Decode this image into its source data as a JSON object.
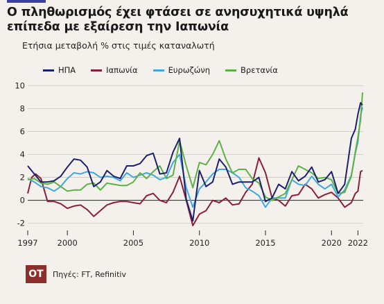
{
  "header": {
    "title": "Ο πληθωρισμός έχει φτάσει σε ανησυχητικά υψηλά επίπεδα με εξαίρεση την Ιαπωνία",
    "subtitle": "Ετήσια μεταβολή % στις τιμές καταναλωτή"
  },
  "footer": {
    "logo": "ΟΤ",
    "source": "Πηγές: FT, Refinitiv"
  },
  "chart_data": {
    "type": "line",
    "title": "Ο πληθωρισμός έχει φτάσει σε ανησυχητικά υψηλά επίπεδα με εξαίρεση την Ιαπωνία",
    "subtitle": "Ετήσια μεταβολή % στις τιμές καταναλωτή",
    "xlabel": "",
    "ylabel": "",
    "xlim": [
      1997,
      2022.4
    ],
    "ylim": [
      -2.5,
      10.5
    ],
    "x_ticks": [
      1997,
      2000,
      2005,
      2010,
      2015,
      2020,
      2022
    ],
    "y_ticks": [
      -2,
      0,
      2,
      4,
      6,
      8,
      10
    ],
    "grid": true,
    "legend_position": "top",
    "series": [
      {
        "name": "ΗΠΑ",
        "color": "#1b1f6e",
        "points": [
          [
            1997,
            3.0
          ],
          [
            1997.5,
            2.3
          ],
          [
            1998,
            1.6
          ],
          [
            1998.5,
            1.6
          ],
          [
            1999,
            1.7
          ],
          [
            1999.5,
            2.1
          ],
          [
            2000,
            2.9
          ],
          [
            2000.5,
            3.6
          ],
          [
            2001,
            3.5
          ],
          [
            2001.5,
            2.9
          ],
          [
            2002,
            1.2
          ],
          [
            2002.5,
            1.6
          ],
          [
            2003,
            2.6
          ],
          [
            2003.5,
            2.1
          ],
          [
            2004,
            1.9
          ],
          [
            2004.5,
            3.0
          ],
          [
            2005,
            3.0
          ],
          [
            2005.5,
            3.2
          ],
          [
            2006,
            3.9
          ],
          [
            2006.5,
            4.1
          ],
          [
            2007,
            2.3
          ],
          [
            2007.5,
            2.4
          ],
          [
            2008,
            4.2
          ],
          [
            2008.5,
            5.4
          ],
          [
            2009,
            0.1
          ],
          [
            2009.5,
            -1.8
          ],
          [
            2010,
            2.6
          ],
          [
            2010.5,
            1.2
          ],
          [
            2011,
            1.6
          ],
          [
            2011.5,
            3.6
          ],
          [
            2012,
            2.9
          ],
          [
            2012.5,
            1.4
          ],
          [
            2013,
            1.6
          ],
          [
            2013.5,
            1.6
          ],
          [
            2014,
            1.6
          ],
          [
            2014.5,
            2.0
          ],
          [
            2015,
            -0.1
          ],
          [
            2015.5,
            0.2
          ],
          [
            2016,
            1.4
          ],
          [
            2016.5,
            1.0
          ],
          [
            2017,
            2.5
          ],
          [
            2017.5,
            1.7
          ],
          [
            2018,
            2.1
          ],
          [
            2018.5,
            2.9
          ],
          [
            2019,
            1.6
          ],
          [
            2019.5,
            1.8
          ],
          [
            2020,
            2.5
          ],
          [
            2020.5,
            0.6
          ],
          [
            2021,
            1.4
          ],
          [
            2021.5,
            5.4
          ],
          [
            2021.8,
            6.2
          ],
          [
            2022,
            7.5
          ],
          [
            2022.2,
            8.5
          ],
          [
            2022.35,
            8.3
          ]
        ]
      },
      {
        "name": "Ιαπωνία",
        "color": "#8a1e3a",
        "points": [
          [
            1997,
            0.6
          ],
          [
            1997.3,
            2.0
          ],
          [
            1997.6,
            2.3
          ],
          [
            1998,
            1.9
          ],
          [
            1998.5,
            -0.1
          ],
          [
            1999,
            -0.1
          ],
          [
            1999.5,
            -0.3
          ],
          [
            2000,
            -0.7
          ],
          [
            2000.5,
            -0.5
          ],
          [
            2001,
            -0.4
          ],
          [
            2001.5,
            -0.8
          ],
          [
            2002,
            -1.4
          ],
          [
            2002.5,
            -0.9
          ],
          [
            2003,
            -0.4
          ],
          [
            2003.5,
            -0.2
          ],
          [
            2004,
            -0.1
          ],
          [
            2004.5,
            -0.1
          ],
          [
            2005,
            -0.2
          ],
          [
            2005.5,
            -0.3
          ],
          [
            2006,
            0.4
          ],
          [
            2006.5,
            0.6
          ],
          [
            2007,
            0.0
          ],
          [
            2007.5,
            -0.2
          ],
          [
            2008,
            0.7
          ],
          [
            2008.5,
            2.1
          ],
          [
            2009,
            0.0
          ],
          [
            2009.5,
            -2.2
          ],
          [
            2010,
            -1.2
          ],
          [
            2010.5,
            -0.9
          ],
          [
            2011,
            0.0
          ],
          [
            2011.5,
            -0.2
          ],
          [
            2012,
            0.2
          ],
          [
            2012.5,
            -0.4
          ],
          [
            2013,
            -0.3
          ],
          [
            2013.5,
            0.7
          ],
          [
            2014,
            1.4
          ],
          [
            2014.5,
            3.7
          ],
          [
            2015,
            2.4
          ],
          [
            2015.5,
            0.2
          ],
          [
            2016,
            0.0
          ],
          [
            2016.5,
            -0.5
          ],
          [
            2017,
            0.4
          ],
          [
            2017.5,
            0.5
          ],
          [
            2018,
            1.4
          ],
          [
            2018.5,
            1.0
          ],
          [
            2019,
            0.2
          ],
          [
            2019.5,
            0.5
          ],
          [
            2020,
            0.7
          ],
          [
            2020.5,
            0.2
          ],
          [
            2021,
            -0.6
          ],
          [
            2021.5,
            -0.2
          ],
          [
            2021.8,
            0.6
          ],
          [
            2022,
            0.8
          ],
          [
            2022.2,
            2.5
          ],
          [
            2022.35,
            2.6
          ]
        ]
      },
      {
        "name": "Ευρωζώνη",
        "color": "#3fa8e0",
        "points": [
          [
            1997,
            1.9
          ],
          [
            1997.5,
            1.6
          ],
          [
            1998,
            1.2
          ],
          [
            1998.5,
            1.1
          ],
          [
            1999,
            0.8
          ],
          [
            1999.5,
            1.2
          ],
          [
            2000,
            1.9
          ],
          [
            2000.5,
            2.4
          ],
          [
            2001,
            2.3
          ],
          [
            2001.5,
            2.5
          ],
          [
            2002,
            2.4
          ],
          [
            2002.5,
            2.0
          ],
          [
            2003,
            2.1
          ],
          [
            2003.5,
            2.0
          ],
          [
            2004,
            1.7
          ],
          [
            2004.5,
            2.4
          ],
          [
            2005,
            2.0
          ],
          [
            2005.5,
            2.2
          ],
          [
            2006,
            2.4
          ],
          [
            2006.5,
            2.2
          ],
          [
            2007,
            1.8
          ],
          [
            2007.5,
            2.0
          ],
          [
            2008,
            3.3
          ],
          [
            2008.5,
            4.0
          ],
          [
            2009,
            1.1
          ],
          [
            2009.5,
            -0.6
          ],
          [
            2010,
            1.0
          ],
          [
            2010.5,
            1.6
          ],
          [
            2011,
            2.3
          ],
          [
            2011.5,
            2.7
          ],
          [
            2012,
            2.7
          ],
          [
            2012.5,
            2.4
          ],
          [
            2013,
            2.0
          ],
          [
            2013.5,
            1.1
          ],
          [
            2014,
            0.8
          ],
          [
            2014.5,
            0.4
          ],
          [
            2015,
            -0.6
          ],
          [
            2015.5,
            0.2
          ],
          [
            2016,
            0.2
          ],
          [
            2016.5,
            0.2
          ],
          [
            2017,
            1.8
          ],
          [
            2017.5,
            1.4
          ],
          [
            2018,
            1.3
          ],
          [
            2018.5,
            2.1
          ],
          [
            2019,
            1.4
          ],
          [
            2019.5,
            1.0
          ],
          [
            2020,
            1.4
          ],
          [
            2020.5,
            0.3
          ],
          [
            2021,
            0.9
          ],
          [
            2021.5,
            2.2
          ],
          [
            2021.8,
            4.1
          ],
          [
            2022,
            5.1
          ],
          [
            2022.2,
            7.4
          ],
          [
            2022.35,
            8.1
          ]
        ]
      },
      {
        "name": "Βρετανία",
        "color": "#5cb045",
        "points": [
          [
            1997,
            1.8
          ],
          [
            1997.5,
            1.9
          ],
          [
            1998,
            1.5
          ],
          [
            1998.5,
            1.4
          ],
          [
            1999,
            1.6
          ],
          [
            1999.5,
            1.2
          ],
          [
            2000,
            0.8
          ],
          [
            2000.5,
            0.9
          ],
          [
            2001,
            0.9
          ],
          [
            2001.5,
            1.4
          ],
          [
            2002,
            1.5
          ],
          [
            2002.5,
            0.9
          ],
          [
            2003,
            1.5
          ],
          [
            2003.5,
            1.4
          ],
          [
            2004,
            1.3
          ],
          [
            2004.5,
            1.3
          ],
          [
            2005,
            1.6
          ],
          [
            2005.5,
            2.4
          ],
          [
            2006,
            1.9
          ],
          [
            2006.5,
            2.5
          ],
          [
            2007,
            3.0
          ],
          [
            2007.5,
            1.9
          ],
          [
            2008,
            2.2
          ],
          [
            2008.5,
            5.2
          ],
          [
            2009,
            3.0
          ],
          [
            2009.5,
            1.1
          ],
          [
            2010,
            3.3
          ],
          [
            2010.5,
            3.1
          ],
          [
            2011,
            4.0
          ],
          [
            2011.5,
            5.2
          ],
          [
            2012,
            3.6
          ],
          [
            2012.5,
            2.4
          ],
          [
            2013,
            2.7
          ],
          [
            2013.5,
            2.7
          ],
          [
            2014,
            1.9
          ],
          [
            2014.5,
            1.5
          ],
          [
            2015,
            0.3
          ],
          [
            2015.5,
            0.0
          ],
          [
            2016,
            0.3
          ],
          [
            2016.5,
            0.6
          ],
          [
            2017,
            1.8
          ],
          [
            2017.5,
            3.0
          ],
          [
            2018,
            2.7
          ],
          [
            2018.5,
            2.4
          ],
          [
            2019,
            1.9
          ],
          [
            2019.5,
            2.0
          ],
          [
            2020,
            1.8
          ],
          [
            2020.5,
            0.6
          ],
          [
            2021,
            0.7
          ],
          [
            2021.5,
            2.1
          ],
          [
            2021.8,
            4.2
          ],
          [
            2022,
            5.5
          ],
          [
            2022.2,
            7.0
          ],
          [
            2022.35,
            9.4
          ]
        ]
      }
    ]
  }
}
